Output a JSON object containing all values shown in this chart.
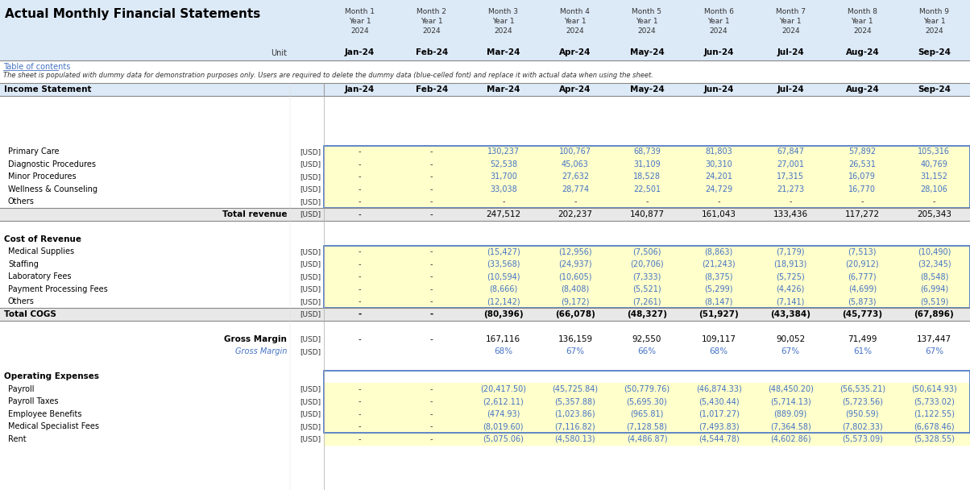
{
  "title": "Actual Monthly Financial Statements",
  "months": [
    "Month 1",
    "Month 2",
    "Month 3",
    "Month 4",
    "Month 5",
    "Month 6",
    "Month 7",
    "Month 8",
    "Month 9"
  ],
  "years": [
    "Year 1",
    "Year 1",
    "Year 1",
    "Year 1",
    "Year 1",
    "Year 1",
    "Year 1",
    "Year 1",
    "Year 1"
  ],
  "year_nums": [
    "2024",
    "2024",
    "2024",
    "2024",
    "2024",
    "2024",
    "2024",
    "2024",
    "2024"
  ],
  "month_labels": [
    "Jan-24",
    "Feb-24",
    "Mar-24",
    "Apr-24",
    "May-24",
    "Jun-24",
    "Jul-24",
    "Aug-24",
    "Sep-24"
  ],
  "unit_label": "Unit",
  "note1": "Table of contents",
  "note2": "The sheet is populated with dummy data for demonstration purposes only. Users are required to delete the dummy data (blue-celled font) and replace it with actual data when using the sheet.",
  "header_bg": "#dce9f7",
  "blue_text_color": "#4472c4",
  "dark_text_color": "#333333",
  "yellow_bg": "#ffffcc",
  "rows": [
    {
      "label": "Income Statement",
      "unit": "",
      "values": [
        "Jan-24",
        "Feb-24",
        "Mar-24",
        "Apr-24",
        "May-24",
        "Jun-24",
        "Jul-24",
        "Aug-24",
        "Sep-24"
      ],
      "type": "section_header"
    },
    {
      "label": "",
      "unit": "",
      "values": [
        "",
        "",
        "",
        "",
        "",
        "",
        "",
        "",
        ""
      ],
      "type": "spacer"
    },
    {
      "label": "",
      "unit": "",
      "values": [
        "",
        "",
        "",
        "",
        "",
        "",
        "",
        "",
        ""
      ],
      "type": "spacer"
    },
    {
      "label": "",
      "unit": "",
      "values": [
        "",
        "",
        "",
        "",
        "",
        "",
        "",
        "",
        ""
      ],
      "type": "spacer"
    },
    {
      "label": "",
      "unit": "",
      "values": [
        "",
        "",
        "",
        "",
        "",
        "",
        "",
        "",
        ""
      ],
      "type": "spacer"
    },
    {
      "label": "Primary Care",
      "unit": "[USD]",
      "values": [
        "-",
        "-",
        "130,237",
        "100,767",
        "68,739",
        "81,803",
        "67,847",
        "57,892",
        "105,316"
      ],
      "type": "data_blue"
    },
    {
      "label": "Diagnostic Procedures",
      "unit": "[USD]",
      "values": [
        "-",
        "-",
        "52,538",
        "45,063",
        "31,109",
        "30,310",
        "27,001",
        "26,531",
        "40,769"
      ],
      "type": "data_blue"
    },
    {
      "label": "Minor Procedures",
      "unit": "[USD]",
      "values": [
        "-",
        "-",
        "31,700",
        "27,632",
        "18,528",
        "24,201",
        "17,315",
        "16,079",
        "31,152"
      ],
      "type": "data_blue"
    },
    {
      "label": "Wellness & Counseling",
      "unit": "[USD]",
      "values": [
        "-",
        "-",
        "33,038",
        "28,774",
        "22,501",
        "24,729",
        "21,273",
        "16,770",
        "28,106"
      ],
      "type": "data_blue"
    },
    {
      "label": "Others",
      "unit": "[USD]",
      "values": [
        "-",
        "-",
        "-",
        "-",
        "-",
        "-",
        "-",
        "-",
        "-"
      ],
      "type": "data_blue"
    },
    {
      "label": "Total revenue",
      "unit": "[USD]",
      "values": [
        "-",
        "-",
        "247,512",
        "202,237",
        "140,877",
        "161,043",
        "133,436",
        "117,272",
        "205,343"
      ],
      "type": "total_right"
    },
    {
      "label": "",
      "unit": "",
      "values": [
        "",
        "",
        "",
        "",
        "",
        "",
        "",
        "",
        ""
      ],
      "type": "spacer"
    },
    {
      "label": "Cost of Revenue",
      "unit": "",
      "values": [
        "",
        "",
        "",
        "",
        "",
        "",
        "",
        "",
        ""
      ],
      "type": "subsection_header"
    },
    {
      "label": "Medical Supplies",
      "unit": "[USD]",
      "values": [
        "-",
        "-",
        "(15,427)",
        "(12,956)",
        "(7,506)",
        "(8,863)",
        "(7,179)",
        "(7,513)",
        "(10,490)"
      ],
      "type": "data_blue"
    },
    {
      "label": "Staffing",
      "unit": "[USD]",
      "values": [
        "-",
        "-",
        "(33,568)",
        "(24,937)",
        "(20,706)",
        "(21,243)",
        "(18,913)",
        "(20,912)",
        "(32,345)"
      ],
      "type": "data_blue"
    },
    {
      "label": "Laboratory Fees",
      "unit": "[USD]",
      "values": [
        "-",
        "-",
        "(10,594)",
        "(10,605)",
        "(7,333)",
        "(8,375)",
        "(5,725)",
        "(6,777)",
        "(8,548)"
      ],
      "type": "data_blue"
    },
    {
      "label": "Payment Processing Fees",
      "unit": "[USD]",
      "values": [
        "-",
        "-",
        "(8,666)",
        "(8,408)",
        "(5,521)",
        "(5,299)",
        "(4,426)",
        "(4,699)",
        "(6,994)"
      ],
      "type": "data_blue"
    },
    {
      "label": "Others",
      "unit": "[USD]",
      "values": [
        "-",
        "-",
        "(12,142)",
        "(9,172)",
        "(7,261)",
        "(8,147)",
        "(7,141)",
        "(5,873)",
        "(9,519)"
      ],
      "type": "data_blue"
    },
    {
      "label": "Total COGS",
      "unit": "[USD]",
      "values": [
        "-",
        "-",
        "(80,396)",
        "(66,078)",
        "(48,327)",
        "(51,927)",
        "(43,384)",
        "(45,773)",
        "(67,896)"
      ],
      "type": "total_left_bold"
    },
    {
      "label": "",
      "unit": "",
      "values": [
        "",
        "",
        "",
        "",
        "",
        "",
        "",
        "",
        ""
      ],
      "type": "spacer"
    },
    {
      "label": "Gross Margin",
      "unit": "[USD]",
      "values": [
        "-",
        "-",
        "167,116",
        "136,159",
        "92,550",
        "109,117",
        "90,052",
        "71,499",
        "137,447"
      ],
      "type": "gross_margin"
    },
    {
      "label": "Gross Margin",
      "unit": "[USD]",
      "values": [
        "",
        "",
        "68%",
        "67%",
        "66%",
        "68%",
        "67%",
        "61%",
        "67%"
      ],
      "type": "gross_margin_pct"
    },
    {
      "label": "",
      "unit": "",
      "values": [
        "",
        "",
        "",
        "",
        "",
        "",
        "",
        "",
        ""
      ],
      "type": "spacer"
    },
    {
      "label": "Operating Expenses",
      "unit": "",
      "values": [
        "",
        "",
        "",
        "",
        "",
        "",
        "",
        "",
        ""
      ],
      "type": "subsection_header"
    },
    {
      "label": "Payroll",
      "unit": "[USD]",
      "values": [
        "-",
        "-",
        "(20,417.50)",
        "(45,725.84)",
        "(50,779.76)",
        "(46,874.33)",
        "(48,450.20)",
        "(56,535.21)",
        "(50,614.93)"
      ],
      "type": "data_blue"
    },
    {
      "label": "Payroll Taxes",
      "unit": "[USD]",
      "values": [
        "-",
        "-",
        "(2,612.11)",
        "(5,357.88)",
        "(5,695.30)",
        "(5,430.44)",
        "(5,714.13)",
        "(5,723.56)",
        "(5,733.02)"
      ],
      "type": "data_blue"
    },
    {
      "label": "Employee Benefits",
      "unit": "[USD]",
      "values": [
        "-",
        "-",
        "(474.93)",
        "(1,023.86)",
        "(965.81)",
        "(1,017.27)",
        "(889.09)",
        "(950.59)",
        "(1,122.55)"
      ],
      "type": "data_blue"
    },
    {
      "label": "Medical Specialist Fees",
      "unit": "[USD]",
      "values": [
        "-",
        "-",
        "(8,019.60)",
        "(7,116.82)",
        "(7,128.58)",
        "(7,493.83)",
        "(7,364.58)",
        "(7,802.33)",
        "(6,678.46)"
      ],
      "type": "data_blue"
    },
    {
      "label": "Rent",
      "unit": "[USD]",
      "values": [
        "-",
        "-",
        "(5,075.06)",
        "(4,580.13)",
        "(4,486.87)",
        "(4,544.78)",
        "(4,602.86)",
        "(5,573.09)",
        "(5,328.55)"
      ],
      "type": "data_blue"
    }
  ],
  "income_data_rows": [
    5,
    9
  ],
  "cogs_data_rows": [
    13,
    17
  ],
  "opex_data_rows": [
    23,
    27
  ]
}
